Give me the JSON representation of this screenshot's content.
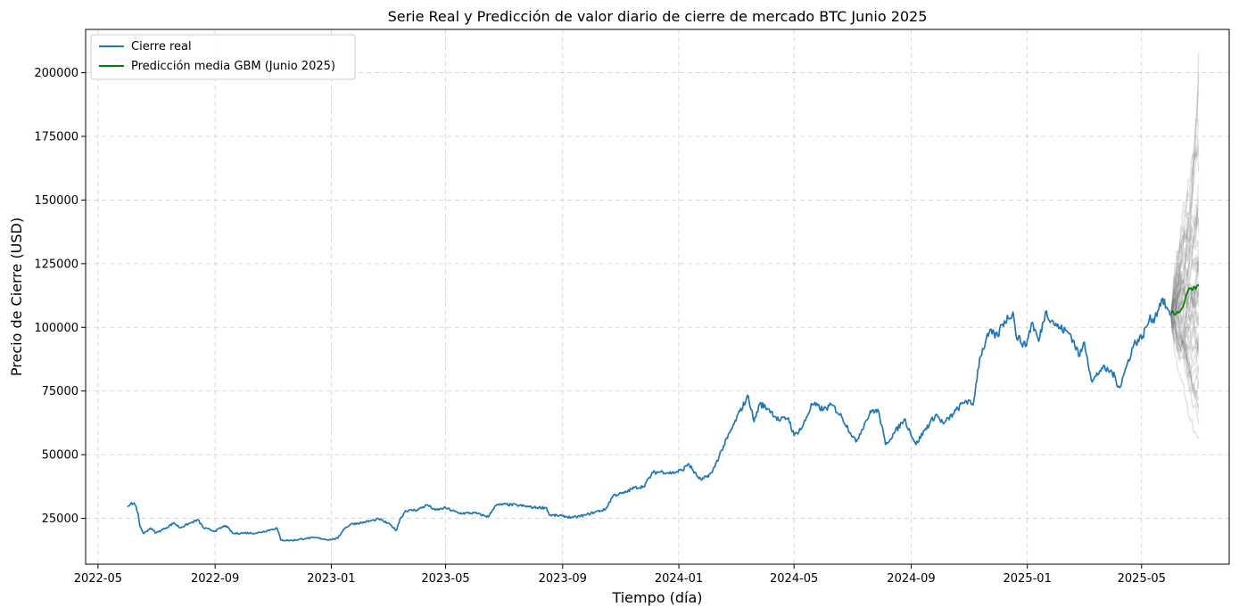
{
  "chart_data": {
    "type": "line",
    "title": "Serie Real y Predicción de valor diario de cierre de mercado BTC Junio 2025",
    "xlabel": "Tiempo (día)",
    "ylabel": "Precio de Cierre (USD)",
    "xlim": [
      "2022-04-18",
      "2025-08-01"
    ],
    "ylim": [
      7000,
      217000
    ],
    "grid": true,
    "legend_position": "top-left",
    "x_ticks": [
      "2022-05",
      "2022-09",
      "2023-01",
      "2023-05",
      "2023-09",
      "2024-01",
      "2024-05",
      "2024-09",
      "2025-01",
      "2025-05"
    ],
    "y_ticks": [
      25000,
      50000,
      75000,
      100000,
      125000,
      150000,
      175000,
      200000
    ],
    "y_tick_labels": [
      "25000",
      "50000",
      "75000",
      "100000",
      "125000",
      "150000",
      "175000",
      "200000"
    ],
    "series": [
      {
        "name": "Cierre real",
        "color": "#1f77b4",
        "points": [
          [
            "2022-06-01",
            29500
          ],
          [
            "2022-06-05",
            31200
          ],
          [
            "2022-06-09",
            30200
          ],
          [
            "2022-06-12",
            27000
          ],
          [
            "2022-06-14",
            22000
          ],
          [
            "2022-06-18",
            19000
          ],
          [
            "2022-06-25",
            21200
          ],
          [
            "2022-07-01",
            19300
          ],
          [
            "2022-07-10",
            21000
          ],
          [
            "2022-07-20",
            23200
          ],
          [
            "2022-07-26",
            21300
          ],
          [
            "2022-08-05",
            23000
          ],
          [
            "2022-08-14",
            24400
          ],
          [
            "2022-08-20",
            21200
          ],
          [
            "2022-09-01",
            20000
          ],
          [
            "2022-09-12",
            22200
          ],
          [
            "2022-09-20",
            19000
          ],
          [
            "2022-10-01",
            19300
          ],
          [
            "2022-10-15",
            19200
          ],
          [
            "2022-10-30",
            20600
          ],
          [
            "2022-11-05",
            21200
          ],
          [
            "2022-11-09",
            16500
          ],
          [
            "2022-11-20",
            16300
          ],
          [
            "2022-12-05",
            17100
          ],
          [
            "2022-12-15",
            17400
          ],
          [
            "2022-12-30",
            16600
          ],
          [
            "2023-01-08",
            17200
          ],
          [
            "2023-01-14",
            20800
          ],
          [
            "2023-01-22",
            22800
          ],
          [
            "2023-02-01",
            23200
          ],
          [
            "2023-02-15",
            24300
          ],
          [
            "2023-02-20",
            24800
          ],
          [
            "2023-03-05",
            22300
          ],
          [
            "2023-03-10",
            20200
          ],
          [
            "2023-03-14",
            24500
          ],
          [
            "2023-03-20",
            28000
          ],
          [
            "2023-04-01",
            28300
          ],
          [
            "2023-04-12",
            30300
          ],
          [
            "2023-04-20",
            28200
          ],
          [
            "2023-05-01",
            29100
          ],
          [
            "2023-05-15",
            27000
          ],
          [
            "2023-06-01",
            27100
          ],
          [
            "2023-06-15",
            25600
          ],
          [
            "2023-06-22",
            30000
          ],
          [
            "2023-07-01",
            30500
          ],
          [
            "2023-07-15",
            30200
          ],
          [
            "2023-08-01",
            29300
          ],
          [
            "2023-08-15",
            29200
          ],
          [
            "2023-08-18",
            26300
          ],
          [
            "2023-09-01",
            25900
          ],
          [
            "2023-09-12",
            25300
          ],
          [
            "2023-09-25",
            26300
          ],
          [
            "2023-10-05",
            27500
          ],
          [
            "2023-10-16",
            28500
          ],
          [
            "2023-10-24",
            34000
          ],
          [
            "2023-11-05",
            35000
          ],
          [
            "2023-11-15",
            37000
          ],
          [
            "2023-11-25",
            37500
          ],
          [
            "2023-12-05",
            43000
          ],
          [
            "2023-12-15",
            43300
          ],
          [
            "2023-12-25",
            42800
          ],
          [
            "2024-01-05",
            44000
          ],
          [
            "2024-01-11",
            46500
          ],
          [
            "2024-01-20",
            41600
          ],
          [
            "2024-01-25",
            40000
          ],
          [
            "2024-02-05",
            43000
          ],
          [
            "2024-02-15",
            51800
          ],
          [
            "2024-02-28",
            62000
          ],
          [
            "2024-03-05",
            67000
          ],
          [
            "2024-03-14",
            73000
          ],
          [
            "2024-03-20",
            63000
          ],
          [
            "2024-03-26",
            70000
          ],
          [
            "2024-04-05",
            67800
          ],
          [
            "2024-04-15",
            63500
          ],
          [
            "2024-04-25",
            64500
          ],
          [
            "2024-05-01",
            57500
          ],
          [
            "2024-05-10",
            61000
          ],
          [
            "2024-05-20",
            70000
          ],
          [
            "2024-06-01",
            67700
          ],
          [
            "2024-06-10",
            69500
          ],
          [
            "2024-06-20",
            64900
          ],
          [
            "2024-07-05",
            55000
          ],
          [
            "2024-07-15",
            63000
          ],
          [
            "2024-07-22",
            67500
          ],
          [
            "2024-07-29",
            66800
          ],
          [
            "2024-08-05",
            54000
          ],
          [
            "2024-08-15",
            58900
          ],
          [
            "2024-08-25",
            64000
          ],
          [
            "2024-09-06",
            54000
          ],
          [
            "2024-09-15",
            59500
          ],
          [
            "2024-09-27",
            65800
          ],
          [
            "2024-10-05",
            62100
          ],
          [
            "2024-10-15",
            66000
          ],
          [
            "2024-10-28",
            71300
          ],
          [
            "2024-11-05",
            69500
          ],
          [
            "2024-11-12",
            88000
          ],
          [
            "2024-11-22",
            98000
          ],
          [
            "2024-12-01",
            96500
          ],
          [
            "2024-12-05",
            101000
          ],
          [
            "2024-12-17",
            106000
          ],
          [
            "2024-12-20",
            97000
          ],
          [
            "2024-12-30",
            92500
          ],
          [
            "2025-01-06",
            102000
          ],
          [
            "2025-01-13",
            94500
          ],
          [
            "2025-01-20",
            106000
          ],
          [
            "2025-02-01",
            100500
          ],
          [
            "2025-02-15",
            97500
          ],
          [
            "2025-02-25",
            88700
          ],
          [
            "2025-03-02",
            94200
          ],
          [
            "2025-03-10",
            78500
          ],
          [
            "2025-03-20",
            84000
          ],
          [
            "2025-03-31",
            82500
          ],
          [
            "2025-04-08",
            76300
          ],
          [
            "2025-04-15",
            84500
          ],
          [
            "2025-04-23",
            93500
          ],
          [
            "2025-05-02",
            96500
          ],
          [
            "2025-05-09",
            103000
          ],
          [
            "2025-05-15",
            103700
          ],
          [
            "2025-05-22",
            111000
          ],
          [
            "2025-05-27",
            108000
          ],
          [
            "2025-05-31",
            104600
          ]
        ]
      },
      {
        "name": "Predicción media GBM (Junio 2025)",
        "color": "#008000",
        "points": [
          [
            "2025-06-01",
            105500
          ],
          [
            "2025-06-03",
            106200
          ],
          [
            "2025-06-05",
            104900
          ],
          [
            "2025-06-07",
            106000
          ],
          [
            "2025-06-09",
            105700
          ],
          [
            "2025-06-11",
            106600
          ],
          [
            "2025-06-13",
            107800
          ],
          [
            "2025-06-15",
            110000
          ],
          [
            "2025-06-17",
            113000
          ],
          [
            "2025-06-19",
            114700
          ],
          [
            "2025-06-21",
            115200
          ],
          [
            "2025-06-23",
            114600
          ],
          [
            "2025-06-25",
            116000
          ],
          [
            "2025-06-27",
            115000
          ],
          [
            "2025-06-29",
            116700
          ],
          [
            "2025-06-30",
            116200
          ]
        ]
      }
    ],
    "simulations": {
      "color": "#808080",
      "start": [
        "2025-06-01",
        104600
      ],
      "end_date": "2025-06-30",
      "end_values": [
        57000,
        62000,
        66000,
        70000,
        73000,
        76000,
        79000,
        82000,
        85000,
        88000,
        90000,
        92000,
        94000,
        96000,
        98000,
        100000,
        102000,
        104000,
        106000,
        108000,
        110000,
        112000,
        114000,
        116000,
        118000,
        120000,
        122000,
        124000,
        126000,
        128000,
        131000,
        134000,
        137000,
        140000,
        143000,
        147000,
        151000,
        156000,
        161000,
        167000,
        174000,
        182000,
        191000,
        200000,
        208000
      ]
    }
  }
}
